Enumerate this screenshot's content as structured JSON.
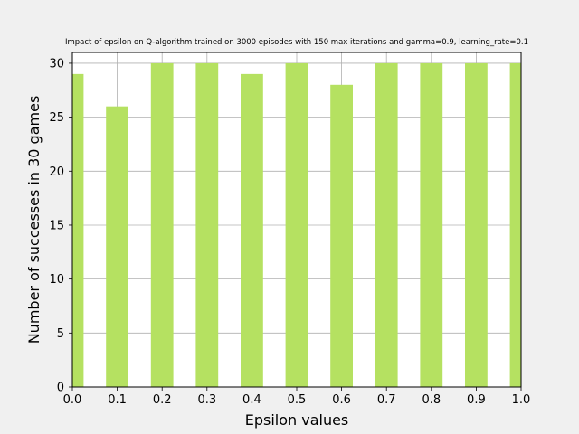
{
  "chart_data": {
    "type": "bar",
    "title": "Impact of epsilon on Q-algorithm trained on 3000 episodes with 150 max iterations and gamma=0.9, learning_rate=0.1",
    "xlabel": "Epsilon values",
    "ylabel": "Number of successes in 30 games",
    "x": [
      0.0,
      0.1,
      0.2,
      0.3,
      0.4,
      0.5,
      0.6,
      0.7,
      0.8,
      0.9,
      1.0
    ],
    "values": [
      29,
      26,
      30,
      30,
      29,
      30,
      28,
      30,
      30,
      30,
      30
    ],
    "xlim": [
      0.0,
      1.0
    ],
    "ylim": [
      0,
      31
    ],
    "xticks": [
      "0.0",
      "0.1",
      "0.2",
      "0.3",
      "0.4",
      "0.5",
      "0.6",
      "0.7",
      "0.8",
      "0.9",
      "1.0"
    ],
    "yticks": [
      "0",
      "5",
      "10",
      "15",
      "20",
      "25",
      "30"
    ],
    "bar_width": 0.05,
    "bar_color": "#b5e161",
    "grid": true,
    "grid_color": "#b0b0b0"
  }
}
